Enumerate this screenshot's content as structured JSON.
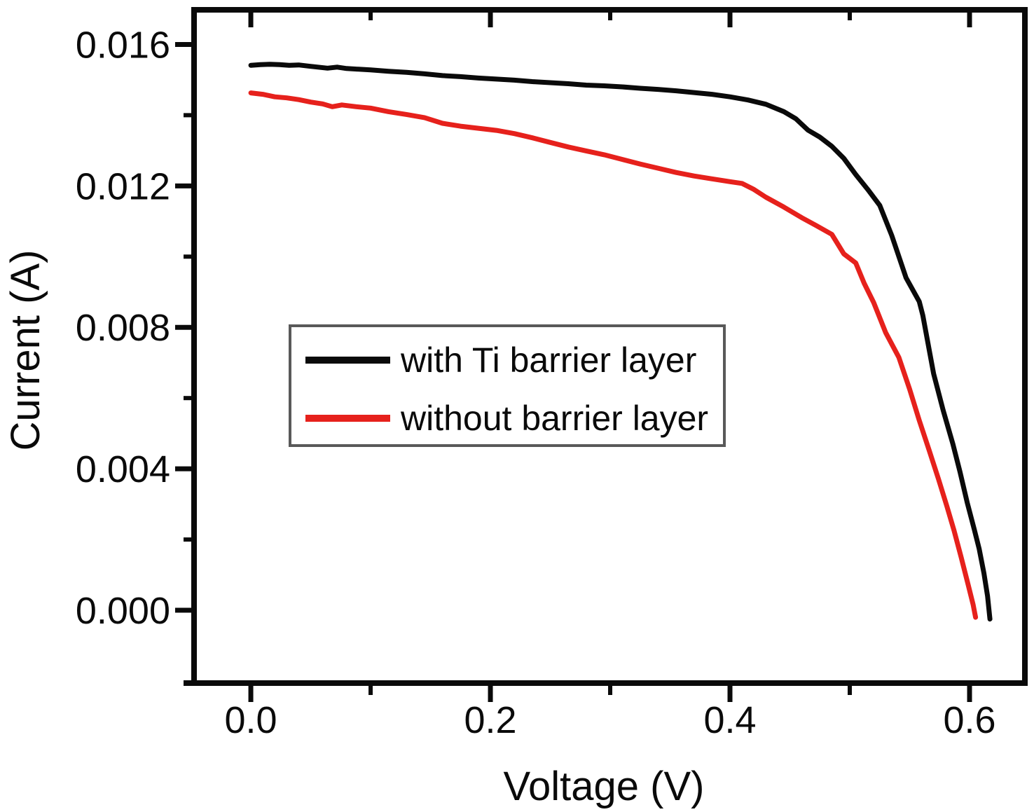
{
  "figure": {
    "background_color": "#ffffff",
    "frame_color": "#0a0a0a",
    "tick_color": "#0a0a0a"
  },
  "chart_data": {
    "type": "line",
    "title": "",
    "xlabel": "Voltage (V)",
    "ylabel": "Current (A)",
    "xlim": [
      -0.0474,
      0.6462
    ],
    "ylim": [
      -0.00206,
      0.01698
    ],
    "grid": false,
    "x_major_ticks": [
      0.0,
      0.2,
      0.4,
      0.6
    ],
    "x_major_tick_labels": [
      "0.0",
      "0.2",
      "0.4",
      "0.6"
    ],
    "x_minor_ticks": [
      0.1,
      0.3,
      0.5
    ],
    "y_major_ticks": [
      0.0,
      0.004,
      0.008,
      0.012,
      0.016
    ],
    "y_major_tick_labels": [
      "0.000",
      "0.004",
      "0.008",
      "0.012",
      "0.016"
    ],
    "y_minor_ticks": [
      0.002,
      0.006,
      0.01,
      0.014
    ],
    "legend_position": "inside middle-left",
    "legend_border_color": "#595959",
    "series": [
      {
        "name": "with Ti barrier layer",
        "color": "#0a0a0a",
        "points": [
          [
            0.0,
            0.01541
          ],
          [
            0.008,
            0.01543
          ],
          [
            0.016,
            0.01544
          ],
          [
            0.024,
            0.01543
          ],
          [
            0.032,
            0.01541
          ],
          [
            0.04,
            0.01542
          ],
          [
            0.048,
            0.01539
          ],
          [
            0.056,
            0.01536
          ],
          [
            0.064,
            0.01533
          ],
          [
            0.072,
            0.01536
          ],
          [
            0.08,
            0.01532
          ],
          [
            0.09,
            0.0153
          ],
          [
            0.1,
            0.01528
          ],
          [
            0.115,
            0.01524
          ],
          [
            0.13,
            0.01521
          ],
          [
            0.145,
            0.01517
          ],
          [
            0.16,
            0.01512
          ],
          [
            0.175,
            0.01509
          ],
          [
            0.19,
            0.01505
          ],
          [
            0.205,
            0.01502
          ],
          [
            0.22,
            0.01499
          ],
          [
            0.235,
            0.01495
          ],
          [
            0.25,
            0.01492
          ],
          [
            0.265,
            0.01489
          ],
          [
            0.28,
            0.01485
          ],
          [
            0.295,
            0.01483
          ],
          [
            0.31,
            0.0148
          ],
          [
            0.325,
            0.01476
          ],
          [
            0.34,
            0.01473
          ],
          [
            0.355,
            0.01469
          ],
          [
            0.37,
            0.01464
          ],
          [
            0.385,
            0.01459
          ],
          [
            0.4,
            0.01452
          ],
          [
            0.415,
            0.01443
          ],
          [
            0.43,
            0.01431
          ],
          [
            0.445,
            0.0141
          ],
          [
            0.455,
            0.0139
          ],
          [
            0.465,
            0.01358
          ],
          [
            0.475,
            0.01338
          ],
          [
            0.485,
            0.01312
          ],
          [
            0.495,
            0.01278
          ],
          [
            0.505,
            0.01232
          ],
          [
            0.515,
            0.0119
          ],
          [
            0.525,
            0.01145
          ],
          [
            0.535,
            0.0106
          ],
          [
            0.547,
            0.0094
          ],
          [
            0.558,
            0.00873
          ],
          [
            0.561,
            0.00834
          ],
          [
            0.57,
            0.00669
          ],
          [
            0.578,
            0.00565
          ],
          [
            0.586,
            0.00471
          ],
          [
            0.592,
            0.00392
          ],
          [
            0.598,
            0.00305
          ],
          [
            0.604,
            0.00228
          ],
          [
            0.608,
            0.00174
          ],
          [
            0.612,
            0.00105
          ],
          [
            0.615,
            0.0004
          ],
          [
            0.617,
            -0.00025
          ]
        ]
      },
      {
        "name": "without barrier layer",
        "color": "#e6211c",
        "points": [
          [
            0.0,
            0.01463
          ],
          [
            0.01,
            0.01459
          ],
          [
            0.02,
            0.01452
          ],
          [
            0.03,
            0.01449
          ],
          [
            0.04,
            0.01444
          ],
          [
            0.05,
            0.01437
          ],
          [
            0.06,
            0.01432
          ],
          [
            0.068,
            0.01424
          ],
          [
            0.076,
            0.01429
          ],
          [
            0.088,
            0.01424
          ],
          [
            0.1,
            0.0142
          ],
          [
            0.115,
            0.0141
          ],
          [
            0.13,
            0.01402
          ],
          [
            0.145,
            0.01393
          ],
          [
            0.16,
            0.01377
          ],
          [
            0.175,
            0.01369
          ],
          [
            0.19,
            0.01363
          ],
          [
            0.205,
            0.01357
          ],
          [
            0.22,
            0.01348
          ],
          [
            0.235,
            0.01336
          ],
          [
            0.25,
            0.01323
          ],
          [
            0.265,
            0.0131
          ],
          [
            0.28,
            0.01299
          ],
          [
            0.295,
            0.01288
          ],
          [
            0.31,
            0.01275
          ],
          [
            0.325,
            0.01262
          ],
          [
            0.34,
            0.0125
          ],
          [
            0.355,
            0.01238
          ],
          [
            0.37,
            0.01228
          ],
          [
            0.385,
            0.0122
          ],
          [
            0.4,
            0.01212
          ],
          [
            0.41,
            0.01207
          ],
          [
            0.42,
            0.0119
          ],
          [
            0.43,
            0.01168
          ],
          [
            0.445,
            0.0114
          ],
          [
            0.46,
            0.0111
          ],
          [
            0.472,
            0.01088
          ],
          [
            0.485,
            0.01063
          ],
          [
            0.495,
            0.01008
          ],
          [
            0.505,
            0.00982
          ],
          [
            0.512,
            0.00925
          ],
          [
            0.52,
            0.0087
          ],
          [
            0.53,
            0.00785
          ],
          [
            0.541,
            0.00715
          ],
          [
            0.55,
            0.00625
          ],
          [
            0.558,
            0.00537
          ],
          [
            0.566,
            0.00455
          ],
          [
            0.574,
            0.00372
          ],
          [
            0.581,
            0.00295
          ],
          [
            0.587,
            0.00226
          ],
          [
            0.593,
            0.0015
          ],
          [
            0.599,
            0.0007
          ],
          [
            0.603,
            0.00016
          ],
          [
            0.605,
            -0.0002
          ]
        ]
      }
    ]
  }
}
